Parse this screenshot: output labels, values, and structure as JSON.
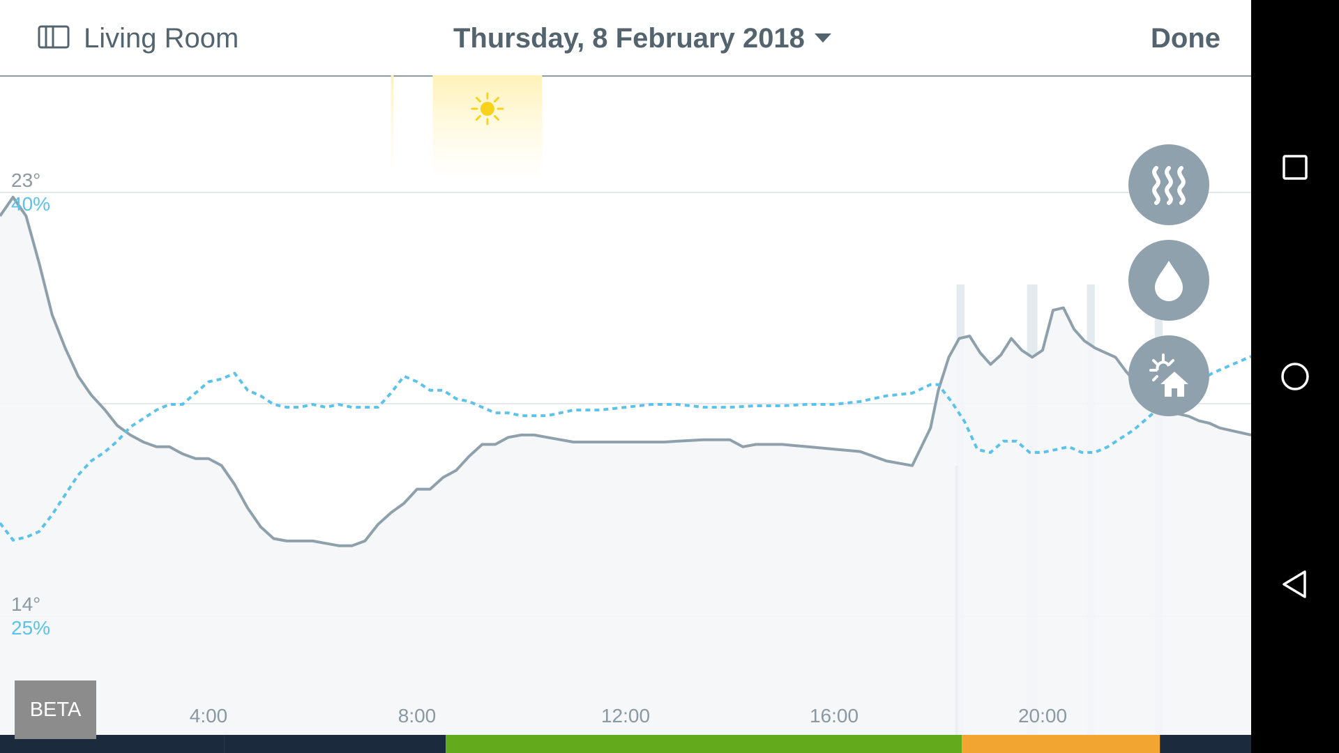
{
  "header": {
    "room_label": "Living Room",
    "date_label": "Thursday, 8 February 2018",
    "done_label": "Done"
  },
  "beta_label": "BETA",
  "fabs": [
    {
      "name": "heating-button",
      "icon": "heat-waves-icon"
    },
    {
      "name": "humidity-button",
      "icon": "water-drop-icon"
    },
    {
      "name": "weather-button",
      "icon": "sun-house-icon"
    }
  ],
  "system_nav": [
    "recents-icon",
    "home-icon",
    "back-icon"
  ],
  "colors": {
    "temperature": "#8ea0ab",
    "humidity": "#5bc2ea",
    "sun": "#f9d21c",
    "fab": "#8fa1ad",
    "text": "#54646f"
  },
  "chart_data": {
    "type": "line",
    "x_unit": "hour",
    "xlim": [
      0,
      24
    ],
    "x_ticks": [
      "4:00",
      "8:00",
      "12:00",
      "16:00",
      "20:00"
    ],
    "y_left": {
      "labels": [
        "23°",
        "14°"
      ],
      "ylim": [
        14,
        23
      ]
    },
    "y_right": {
      "labels": [
        "40%",
        "25%"
      ],
      "ylim": [
        25,
        40
      ]
    },
    "series": [
      {
        "key": "temperature",
        "style": "solid",
        "x": [
          0,
          0.25,
          0.5,
          0.75,
          1.0,
          1.25,
          1.5,
          1.75,
          2.0,
          2.25,
          2.5,
          2.75,
          3.0,
          3.25,
          3.5,
          3.75,
          4.0,
          4.25,
          4.5,
          4.75,
          5.0,
          5.25,
          5.5,
          5.75,
          6.0,
          6.25,
          6.5,
          6.75,
          7.0,
          7.25,
          7.5,
          7.75,
          8.0,
          8.25,
          8.5,
          8.75,
          9.0,
          9.25,
          9.5,
          9.75,
          10.0,
          10.25,
          10.5,
          10.75,
          11.0,
          11.25,
          11.5,
          11.75,
          12.0,
          12.25,
          12.5,
          12.75,
          13.0,
          13.5,
          14.0,
          14.25,
          14.5,
          15.0,
          15.5,
          16.0,
          16.5,
          17.0,
          17.5,
          17.85,
          18.0,
          18.2,
          18.4,
          18.6,
          18.8,
          19.0,
          19.2,
          19.4,
          19.6,
          19.8,
          20.0,
          20.2,
          20.4,
          20.6,
          20.8,
          21.0,
          21.2,
          21.4,
          21.6,
          21.8,
          22.0,
          22.2,
          22.4,
          22.6,
          22.8,
          23.0,
          23.2,
          23.4,
          23.6,
          23.8,
          24.0
        ],
        "values": [
          22.5,
          22.9,
          22.5,
          21.5,
          20.4,
          19.7,
          19.1,
          18.7,
          18.4,
          18.05,
          17.85,
          17.7,
          17.6,
          17.6,
          17.45,
          17.35,
          17.35,
          17.2,
          16.8,
          16.3,
          15.9,
          15.65,
          15.6,
          15.6,
          15.6,
          15.55,
          15.5,
          15.5,
          15.6,
          15.95,
          16.2,
          16.4,
          16.7,
          16.7,
          16.95,
          17.1,
          17.4,
          17.65,
          17.65,
          17.8,
          17.85,
          17.85,
          17.8,
          17.75,
          17.7,
          17.7,
          17.7,
          17.7,
          17.7,
          17.7,
          17.7,
          17.7,
          17.72,
          17.75,
          17.75,
          17.6,
          17.65,
          17.65,
          17.6,
          17.55,
          17.5,
          17.3,
          17.2,
          18.0,
          18.8,
          19.5,
          19.9,
          19.95,
          19.6,
          19.35,
          19.55,
          19.9,
          19.65,
          19.5,
          19.65,
          20.5,
          20.55,
          20.1,
          19.85,
          19.7,
          19.6,
          19.5,
          19.2,
          18.95,
          18.8,
          18.55,
          18.45,
          18.3,
          18.25,
          18.15,
          18.1,
          18.0,
          17.95,
          17.9,
          17.85
        ]
      },
      {
        "key": "humidity",
        "style": "dashed",
        "x": [
          0,
          0.25,
          0.5,
          0.75,
          1.0,
          1.25,
          1.5,
          1.75,
          2.0,
          2.25,
          2.5,
          2.75,
          3.0,
          3.25,
          3.5,
          3.75,
          4.0,
          4.25,
          4.5,
          4.75,
          5.0,
          5.25,
          5.5,
          5.75,
          6.0,
          6.25,
          6.5,
          6.75,
          7.0,
          7.25,
          7.5,
          7.75,
          8.0,
          8.25,
          8.5,
          8.75,
          9.0,
          9.25,
          9.5,
          9.75,
          10.0,
          10.25,
          10.5,
          10.75,
          11.0,
          11.25,
          11.5,
          12.0,
          12.5,
          13.0,
          13.5,
          14.0,
          14.5,
          15.0,
          15.5,
          16.0,
          16.5,
          17.0,
          17.5,
          17.85,
          18.0,
          18.25,
          18.5,
          18.75,
          19.0,
          19.25,
          19.5,
          19.75,
          20.0,
          20.25,
          20.5,
          20.75,
          21.0,
          21.25,
          21.5,
          21.75,
          22.0,
          22.25,
          22.5,
          22.75,
          23.0,
          23.25,
          23.5,
          23.75,
          24.0
        ],
        "values": [
          28.3,
          27.7,
          27.8,
          28.0,
          28.6,
          29.3,
          30.0,
          30.5,
          30.8,
          31.2,
          31.7,
          32.0,
          32.3,
          32.5,
          32.5,
          32.9,
          33.3,
          33.4,
          33.6,
          33.0,
          32.8,
          32.5,
          32.4,
          32.4,
          32.5,
          32.4,
          32.5,
          32.4,
          32.4,
          32.4,
          32.9,
          33.5,
          33.3,
          33.0,
          33.0,
          32.7,
          32.6,
          32.4,
          32.2,
          32.2,
          32.1,
          32.1,
          32.1,
          32.2,
          32.3,
          32.3,
          32.3,
          32.4,
          32.5,
          32.5,
          32.4,
          32.4,
          32.45,
          32.45,
          32.5,
          32.5,
          32.6,
          32.8,
          32.9,
          33.2,
          33.2,
          32.6,
          31.9,
          30.9,
          30.8,
          31.2,
          31.2,
          30.8,
          30.8,
          30.9,
          31.0,
          30.8,
          30.8,
          31.0,
          31.3,
          31.6,
          32.0,
          32.4,
          32.7,
          33.0,
          33.3,
          33.6,
          33.8,
          34.0,
          34.2
        ]
      }
    ],
    "sun_periods": [
      [
        7.5,
        7.55
      ],
      [
        8.3,
        10.4
      ]
    ],
    "activity_bands": [
      [
        18.35,
        18.5
      ],
      [
        19.7,
        19.9
      ],
      [
        20.85,
        21.0
      ],
      [
        22.15,
        22.3
      ]
    ],
    "schedule_bar": [
      {
        "from": 0,
        "to": 4.3,
        "color": "#1b2a3c"
      },
      {
        "from": 4.3,
        "to": 8.55,
        "color": "#1b2a3c"
      },
      {
        "from": 8.55,
        "to": 18.45,
        "color": "#63aa1d"
      },
      {
        "from": 18.45,
        "to": 22.25,
        "color": "#f2a531"
      },
      {
        "from": 22.25,
        "to": 24,
        "color": "#1b2a3c"
      }
    ]
  }
}
